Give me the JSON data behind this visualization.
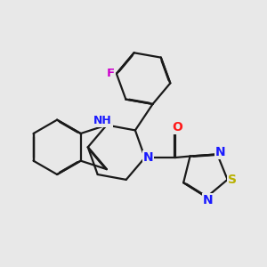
{
  "bg_color": "#e8e8e8",
  "bond_color": "#1a1a1a",
  "bond_width": 1.6,
  "atom_colors": {
    "N": "#1a1aff",
    "O": "#ff1a1a",
    "S": "#b8b000",
    "F": "#cc00cc",
    "C": "#1a1a1a"
  }
}
